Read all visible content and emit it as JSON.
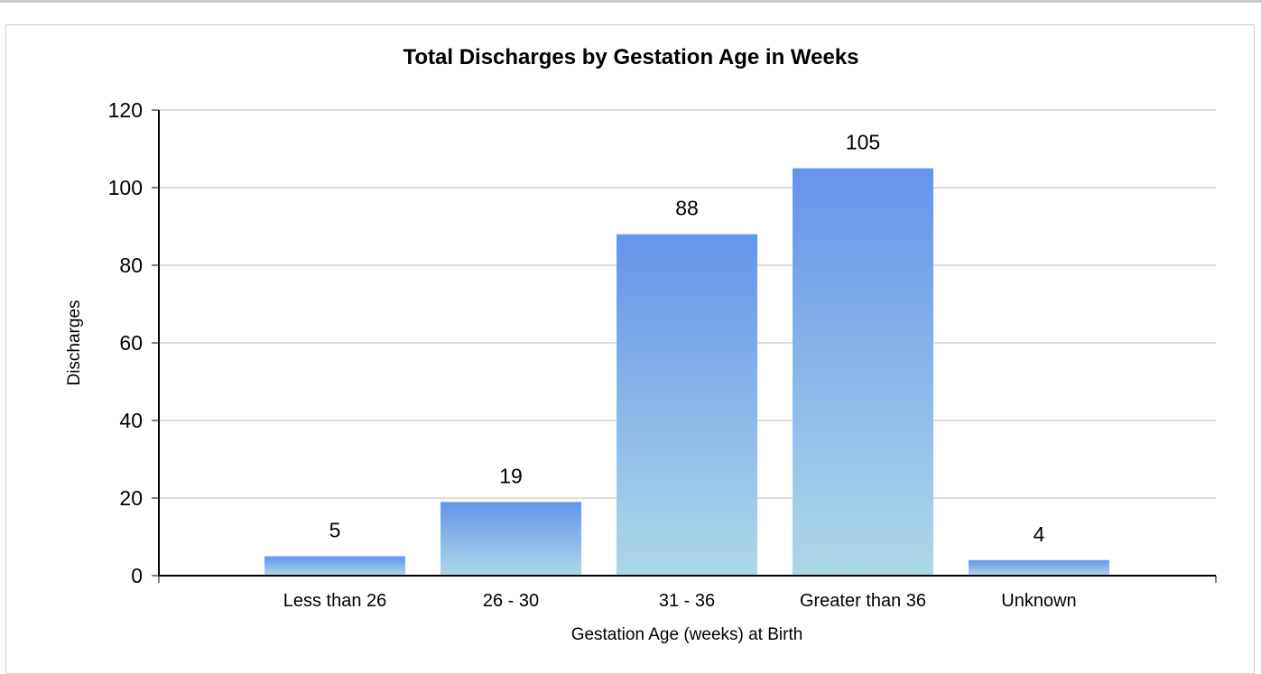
{
  "chart_data": {
    "type": "bar",
    "title": "Total Discharges by Gestation Age in Weeks",
    "xlabel": "Gestation Age (weeks) at Birth",
    "ylabel": "Discharges",
    "categories": [
      "Less than 26",
      "26 - 30",
      "31 - 36",
      "Greater than 36",
      "Unknown"
    ],
    "values": [
      5,
      19,
      88,
      105,
      4
    ],
    "ylim": [
      0,
      120
    ],
    "yticks": [
      0,
      20,
      40,
      60,
      80,
      100,
      120
    ],
    "grid": true,
    "bar_gradient": {
      "top": "#6495ed",
      "bottom": "#add8e6"
    }
  }
}
